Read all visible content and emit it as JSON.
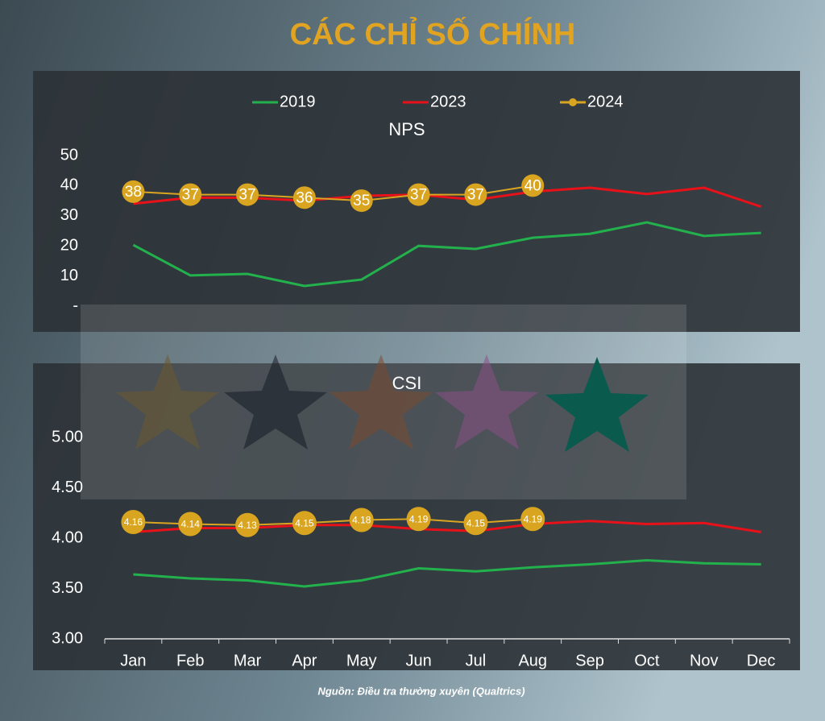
{
  "title": "CÁC CHỈ SỐ CHÍNH",
  "source": "Nguồn: Điều tra thường xuyên (Qualtrics)",
  "chart_data": [
    {
      "type": "line",
      "title": "NPS",
      "legend": "top",
      "ylim": [
        0,
        50
      ],
      "yticks": [
        {
          "value": 0,
          "label": "-"
        },
        10,
        20,
        30,
        40,
        50
      ],
      "series": [
        {
          "name": "2019",
          "color": "#22b14c",
          "values": [
            20.3,
            10.2,
            10.7,
            6.7,
            8.8,
            20,
            19,
            22.7,
            24,
            27.8,
            23.3,
            24.3
          ]
        },
        {
          "name": "2023",
          "color": "#e8111a",
          "values": [
            34,
            36,
            36,
            35,
            36.6,
            37,
            35.3,
            38,
            39.3,
            37.2,
            39.3,
            33
          ]
        },
        {
          "name": "2024",
          "color": "#d9a521",
          "markers": true,
          "values": [
            38,
            37,
            37,
            36,
            35,
            37,
            37,
            40,
            null,
            null,
            null,
            null
          ]
        }
      ]
    },
    {
      "type": "line",
      "title": "CSI",
      "categories": [
        "Jan",
        "Feb",
        "Mar",
        "Apr",
        "May",
        "Jun",
        "Jul",
        "Aug",
        "Sep",
        "Oct",
        "Nov",
        "Dec"
      ],
      "ylim": [
        3,
        5.6
      ],
      "yticks": [
        {
          "value": 3,
          "label": "3.00"
        },
        {
          "value": 3.5,
          "label": "3.50"
        },
        {
          "value": 4,
          "label": "4.00"
        },
        {
          "value": 4.5,
          "label": "4.50"
        },
        {
          "value": 5,
          "label": "5.00"
        }
      ],
      "series": [
        {
          "color": "#22b14c",
          "values": [
            3.64,
            3.6,
            3.58,
            3.52,
            3.58,
            3.7,
            3.67,
            3.71,
            3.74,
            3.78,
            3.75,
            3.74
          ]
        },
        {
          "color": "#e8111a",
          "values": [
            4.06,
            4.1,
            4.1,
            4.13,
            4.13,
            4.09,
            4.07,
            4.14,
            4.17,
            4.14,
            4.15,
            4.06
          ]
        },
        {
          "color": "#d9a521",
          "markers": true,
          "values": [
            4.16,
            4.14,
            4.13,
            4.15,
            4.18,
            4.19,
            4.15,
            4.19,
            null,
            null,
            null,
            null
          ]
        }
      ]
    }
  ]
}
